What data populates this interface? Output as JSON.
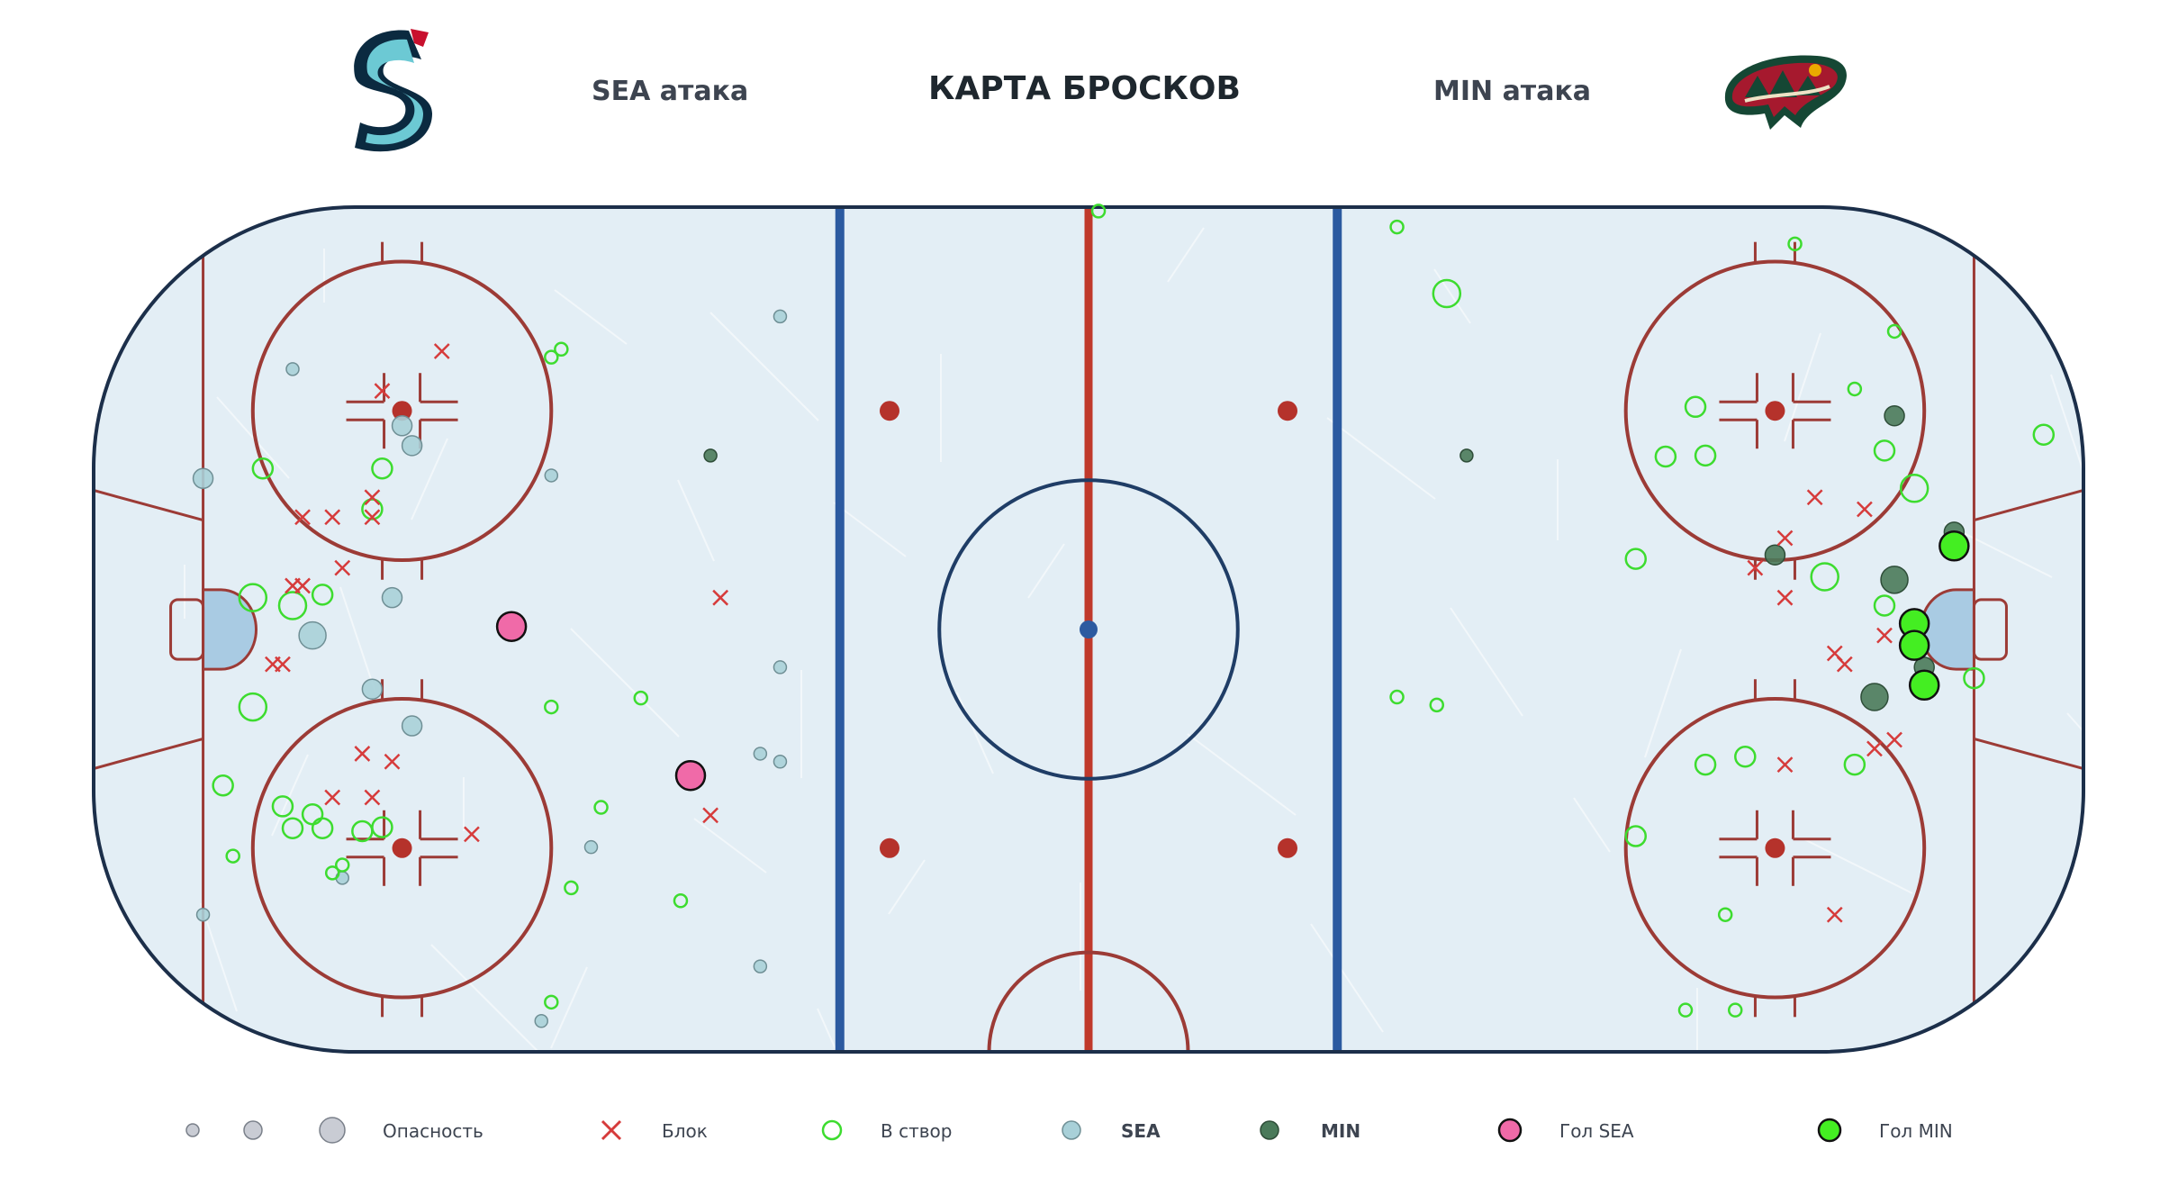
{
  "header": {
    "title": "КАРТА БРОСКОВ",
    "sea_attack": "SEA атака",
    "min_attack": "MIN атака",
    "sea_logo": "seattle-kraken-logo",
    "min_logo": "minnesota-wild-logo"
  },
  "colors": {
    "ice": "#e3eef5",
    "board": "#1c2f4a",
    "red_line": "#c0392b",
    "blue_line": "#2c5aa0",
    "crease": "#a9cbe3",
    "sea_shot": "#a8d0d8",
    "min_shot": "#4a7a5a",
    "on_target_outline": "#3ddc2f",
    "block": "#d63b3b",
    "goal_sea": "#f06aa8",
    "goal_min": "#44ee22"
  },
  "legend": {
    "danger": "Опасность",
    "block": "Блок",
    "on_target": "В створ",
    "sea": "SEA",
    "min": "MIN",
    "goal_sea": "Гол SEA",
    "goal_min": "Гол MIN"
  },
  "chart_data": {
    "type": "scatter",
    "title": "КАРТА БРОСКОВ",
    "x_range": [
      -100,
      100
    ],
    "y_range": [
      -42.5,
      42.5
    ],
    "series": [
      {
        "name": "SEA",
        "points": [
          {
            "x": -89,
            "y": 15.2,
            "s": 2,
            "on": false
          },
          {
            "x": -80,
            "y": 26.2,
            "s": 1,
            "on": false
          },
          {
            "x": -69,
            "y": 20.5,
            "s": 2,
            "on": false
          },
          {
            "x": -68,
            "y": 18.5,
            "s": 2,
            "on": false
          },
          {
            "x": -70,
            "y": 3.2,
            "s": 2,
            "on": false
          },
          {
            "x": -72,
            "y": -6.0,
            "s": 2,
            "on": false
          },
          {
            "x": -68,
            "y": -9.7,
            "s": 2,
            "on": false
          },
          {
            "x": -78,
            "y": -0.6,
            "s": 3,
            "on": false
          },
          {
            "x": -75,
            "y": -25.0,
            "s": 1,
            "on": false
          },
          {
            "x": -89,
            "y": -28.7,
            "s": 1,
            "on": false
          },
          {
            "x": -54,
            "y": 15.5,
            "s": 1,
            "on": false
          },
          {
            "x": -31,
            "y": 31.5,
            "s": 1,
            "on": false
          },
          {
            "x": -31,
            "y": -3.8,
            "s": 1,
            "on": false
          },
          {
            "x": -33,
            "y": -12.5,
            "s": 1,
            "on": false
          },
          {
            "x": -31,
            "y": -13.3,
            "s": 1,
            "on": false
          },
          {
            "x": -50,
            "y": -21.9,
            "s": 1,
            "on": false
          },
          {
            "x": -33,
            "y": -33.9,
            "s": 1,
            "on": false
          },
          {
            "x": -55,
            "y": -39.4,
            "s": 1,
            "on": false
          },
          {
            "x": -83,
            "y": 16.2,
            "s": 2,
            "on": true
          },
          {
            "x": -71,
            "y": 16.2,
            "s": 2,
            "on": true
          },
          {
            "x": -72,
            "y": 12.1,
            "s": 2,
            "on": true
          },
          {
            "x": -77,
            "y": 3.5,
            "s": 2,
            "on": true
          },
          {
            "x": -80,
            "y": 2.4,
            "s": 3,
            "on": true
          },
          {
            "x": -84,
            "y": 3.2,
            "s": 3,
            "on": true
          },
          {
            "x": -84,
            "y": -7.8,
            "s": 3,
            "on": true
          },
          {
            "x": -87,
            "y": -15.7,
            "s": 2,
            "on": true
          },
          {
            "x": -80,
            "y": -20.0,
            "s": 2,
            "on": true
          },
          {
            "x": -78,
            "y": -18.6,
            "s": 2,
            "on": true
          },
          {
            "x": -77,
            "y": -20.0,
            "s": 2,
            "on": true
          },
          {
            "x": -73,
            "y": -20.3,
            "s": 2,
            "on": true
          },
          {
            "x": -71,
            "y": -19.9,
            "s": 2,
            "on": true
          },
          {
            "x": -75,
            "y": -23.7,
            "s": 1,
            "on": true
          },
          {
            "x": -76,
            "y": -24.5,
            "s": 1,
            "on": true
          },
          {
            "x": -86,
            "y": -22.8,
            "s": 1,
            "on": true
          },
          {
            "x": -53,
            "y": 28.2,
            "s": 1,
            "on": true
          },
          {
            "x": -54,
            "y": 27.4,
            "s": 1,
            "on": true
          },
          {
            "x": -54,
            "y": -7.8,
            "s": 1,
            "on": true
          },
          {
            "x": -45,
            "y": -6.9,
            "s": 1,
            "on": true
          },
          {
            "x": -49,
            "y": -17.9,
            "s": 1,
            "on": true
          },
          {
            "x": -52,
            "y": -26.0,
            "s": 1,
            "on": true
          },
          {
            "x": -41,
            "y": -27.3,
            "s": 1,
            "on": true
          },
          {
            "x": -54,
            "y": -37.5,
            "s": 1,
            "on": true
          },
          {
            "x": -81,
            "y": -17.8,
            "s": 2,
            "on": true
          }
        ]
      },
      {
        "name": "MIN",
        "points": [
          {
            "x": 81,
            "y": 21.5,
            "s": 2,
            "on": false
          },
          {
            "x": 87,
            "y": 9.8,
            "s": 2,
            "on": false
          },
          {
            "x": 69,
            "y": 7.5,
            "s": 2,
            "on": false
          },
          {
            "x": 81,
            "y": 5.0,
            "s": 3,
            "on": false
          },
          {
            "x": 79,
            "y": -6.8,
            "s": 3,
            "on": false
          },
          {
            "x": -38,
            "y": 17.5,
            "s": 1,
            "on": false
          },
          {
            "x": 38,
            "y": 17.5,
            "s": 1,
            "on": false
          },
          {
            "x": 84,
            "y": -3.8,
            "s": 2,
            "on": false
          },
          {
            "x": 31,
            "y": 40.5,
            "s": 1,
            "on": true
          },
          {
            "x": 36,
            "y": 33.8,
            "s": 3,
            "on": true
          },
          {
            "x": 71,
            "y": 38.8,
            "s": 1,
            "on": true
          },
          {
            "x": 81,
            "y": 30.0,
            "s": 1,
            "on": true
          },
          {
            "x": 77,
            "y": 24.2,
            "s": 1,
            "on": true
          },
          {
            "x": 61,
            "y": 22.4,
            "s": 2,
            "on": true
          },
          {
            "x": 62,
            "y": 17.5,
            "s": 2,
            "on": true
          },
          {
            "x": 58,
            "y": 17.4,
            "s": 2,
            "on": true
          },
          {
            "x": 83,
            "y": 14.2,
            "s": 3,
            "on": true
          },
          {
            "x": 96,
            "y": 19.6,
            "s": 2,
            "on": true
          },
          {
            "x": 55,
            "y": 7.1,
            "s": 2,
            "on": true
          },
          {
            "x": 74,
            "y": 5.3,
            "s": 3,
            "on": true
          },
          {
            "x": 80,
            "y": 2.4,
            "s": 2,
            "on": true
          },
          {
            "x": 89,
            "y": -4.9,
            "s": 2,
            "on": true
          },
          {
            "x": 31,
            "y": -6.8,
            "s": 1,
            "on": true
          },
          {
            "x": 35,
            "y": -7.6,
            "s": 1,
            "on": true
          },
          {
            "x": 62,
            "y": -13.6,
            "s": 2,
            "on": true
          },
          {
            "x": 66,
            "y": -12.8,
            "s": 2,
            "on": true
          },
          {
            "x": 77,
            "y": -13.6,
            "s": 2,
            "on": true
          },
          {
            "x": 55,
            "y": -20.8,
            "s": 2,
            "on": true
          },
          {
            "x": 64,
            "y": -28.7,
            "s": 1,
            "on": true
          },
          {
            "x": 60,
            "y": -38.3,
            "s": 1,
            "on": true
          },
          {
            "x": 65,
            "y": -38.3,
            "s": 1,
            "on": true
          },
          {
            "x": 1,
            "y": 42.1,
            "s": 1,
            "on": true
          },
          {
            "x": 80,
            "y": 18.0,
            "s": 2,
            "on": true
          }
        ]
      }
    ],
    "blocks": [
      [
        -71,
        24.0
      ],
      [
        -65,
        28.0
      ],
      [
        -79,
        11.3
      ],
      [
        -76,
        11.3
      ],
      [
        -72,
        11.3
      ],
      [
        -72,
        13.3
      ],
      [
        -75,
        6.2
      ],
      [
        -79,
        4.4
      ],
      [
        -80,
        4.4
      ],
      [
        -81,
        -3.5
      ],
      [
        -82,
        -3.5
      ],
      [
        -73,
        -12.5
      ],
      [
        -70,
        -13.3
      ],
      [
        -72,
        -16.9
      ],
      [
        -76,
        -16.9
      ],
      [
        -62,
        -20.6
      ],
      [
        -37,
        3.2
      ],
      [
        -38,
        -18.7
      ],
      [
        73,
        13.3
      ],
      [
        78,
        12.1
      ],
      [
        70,
        9.2
      ],
      [
        67,
        6.2
      ],
      [
        70,
        3.2
      ],
      [
        75,
        -2.4
      ],
      [
        76,
        -3.5
      ],
      [
        80,
        -0.6
      ],
      [
        79,
        -12.0
      ],
      [
        81,
        -11.1
      ],
      [
        70,
        -13.6
      ],
      [
        75,
        -28.7
      ]
    ],
    "goals": [
      {
        "team": "SEA",
        "x": -58,
        "y": 0.3
      },
      {
        "team": "SEA",
        "x": -40,
        "y": -14.7
      },
      {
        "team": "MIN",
        "x": 87,
        "y": 8.4
      },
      {
        "team": "MIN",
        "x": 83,
        "y": 0.6
      },
      {
        "team": "MIN",
        "x": 83,
        "y": -1.6
      },
      {
        "team": "MIN",
        "x": 84,
        "y": -5.6
      }
    ],
    "legend_position": "bottom"
  }
}
